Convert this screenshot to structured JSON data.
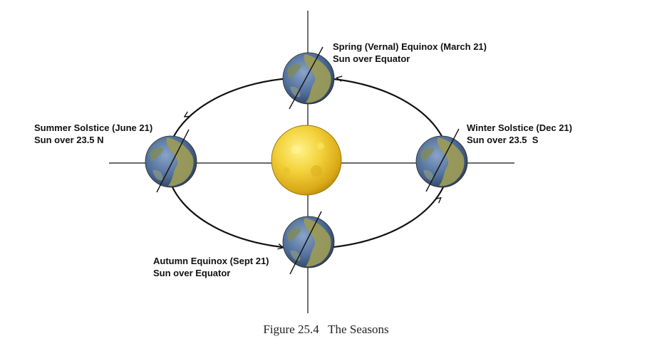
{
  "labels": {
    "spring": {
      "title": "Spring (Vernal) Equinox (March 21)",
      "subtitle": "Sun over Equator"
    },
    "summer": {
      "title": "Summer Solstice (June 21)",
      "subtitle": "Sun over 23.5 N"
    },
    "winter": {
      "title": "Winter Solstice (Dec 21)",
      "subtitle": "Sun over 23.5  S"
    },
    "autumn": {
      "title": "Autumn Equinox (Sept 21)",
      "subtitle": "Sun over Equator"
    }
  },
  "caption": "Figure 25.4   The Seasons",
  "colors": {
    "orbit": "#111111",
    "axes": "#111111",
    "sun": "#f0c528",
    "earth_ocean": "#4d6c98",
    "earth_land": "#9a9a58"
  },
  "icons": {
    "sun": "sun-icon",
    "earth": "earth-globe-icon"
  }
}
